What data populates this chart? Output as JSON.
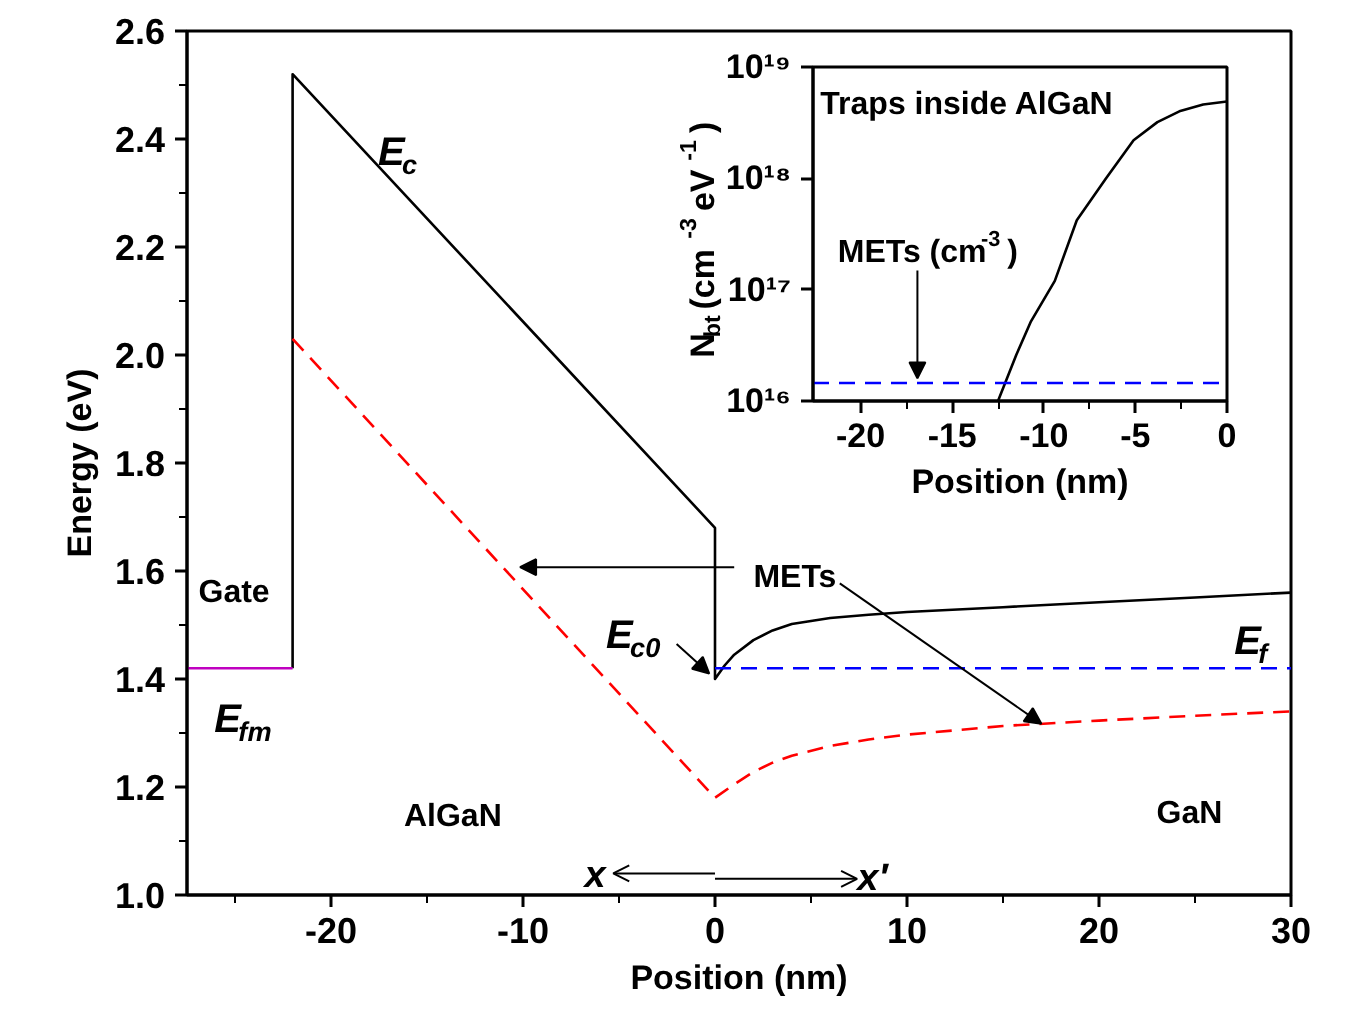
{
  "chart_data": [
    {
      "type": "line",
      "xlabel": "Position (nm)",
      "ylabel": "Energy (eV)",
      "xlim": [
        -27.5,
        30
      ],
      "ylim": [
        1.0,
        2.6
      ],
      "xticks": [
        {
          "value": -25,
          "label": null
        },
        -20,
        {
          "value": -15,
          "label": null
        },
        -10,
        {
          "value": -5,
          "label": null
        },
        0,
        {
          "value": 5,
          "label": null
        },
        10,
        {
          "value": 15,
          "label": null
        },
        20,
        {
          "value": 25,
          "label": null
        },
        30
      ],
      "yticks": [
        {
          "value": 1.0,
          "label": "1.0"
        },
        {
          "value": 1.1,
          "label": null
        },
        {
          "value": 1.2,
          "label": "1.2"
        },
        {
          "value": 1.3,
          "label": null
        },
        {
          "value": 1.4,
          "label": "1.4"
        },
        {
          "value": 1.5,
          "label": null
        },
        {
          "value": 1.6,
          "label": "1.6"
        },
        {
          "value": 1.7,
          "label": null
        },
        {
          "value": 1.8,
          "label": "1.8"
        },
        {
          "value": 1.9,
          "label": null
        },
        {
          "value": 2.0,
          "label": "2.0"
        },
        {
          "value": 2.1,
          "label": null
        },
        {
          "value": 2.2,
          "label": "2.2"
        },
        {
          "value": 2.3,
          "label": null
        },
        {
          "value": 2.4,
          "label": "2.4"
        },
        {
          "value": 2.5,
          "label": null
        },
        {
          "value": 2.6,
          "label": "2.6"
        }
      ],
      "grid": false,
      "series": [
        {
          "color": "#000000",
          "line_style": "solid",
          "x": [
            -22,
            -22,
            0,
            0,
            0.5,
            1,
            2,
            3,
            4,
            6,
            8,
            10,
            15,
            20,
            25,
            30
          ],
          "values": [
            1.42,
            2.52,
            1.68,
            1.4,
            1.425,
            1.445,
            1.472,
            1.49,
            1.502,
            1.513,
            1.519,
            1.524,
            1.533,
            1.542,
            1.551,
            1.56
          ]
        },
        {
          "color": "#c000c0",
          "line_style": "solid",
          "x": [
            -27.5,
            -22
          ],
          "values": [
            1.42,
            1.42
          ]
        },
        {
          "color": "#0000ff",
          "line_style": "dashed",
          "x": [
            0,
            30
          ],
          "values": [
            1.42,
            1.42
          ]
        },
        {
          "color": "#ff0000",
          "line_style": "dashed",
          "x": [
            -22,
            0,
            1,
            2,
            3,
            4,
            6,
            8,
            10,
            15,
            20,
            25,
            30
          ],
          "values": [
            2.03,
            1.18,
            1.205,
            1.228,
            1.245,
            1.258,
            1.276,
            1.288,
            1.297,
            1.313,
            1.323,
            1.332,
            1.34
          ]
        }
      ],
      "annotations": [
        "E$_{c}$",
        "Gate",
        "E$_{fm}$",
        "AlGaN",
        "GaN",
        {
          "text": "E$_{c0}$",
          "x": 0,
          "y": 1.4
        },
        "E$_{f}$",
        {
          "text": "METs",
          "x": 17,
          "y": 1.317
        },
        "x",
        "x′"
      ]
    },
    {
      "type": "line",
      "xlabel": "Position (nm)",
      "ylabel": "N$_{bt}$ (cm$^{-3}$ eV$^{-1}$)",
      "log": "y",
      "xlim": [
        -22.6,
        0
      ],
      "ylim": [
        1e+16,
        1e+19
      ],
      "xticks": [
        -20,
        {
          "value": -17.5,
          "label": null
        },
        -15,
        {
          "value": -12.5,
          "label": null
        },
        -10,
        {
          "value": -7.5,
          "label": null
        },
        -5,
        {
          "value": -2.5,
          "label": null
        },
        0
      ],
      "yticks": [
        {
          "value": 1e+16,
          "label": "10¹⁶"
        },
        {
          "value": 1e+17,
          "label": "10¹⁷"
        },
        {
          "value": 1e+18,
          "label": "10¹⁸"
        },
        {
          "value": 1e+19,
          "label": "10¹⁹"
        }
      ],
      "grid": false,
      "series": [
        {
          "color": "#000000",
          "line_style": "solid",
          "x": [
            -12.5,
            -11.5,
            -10.7,
            -9.4,
            -8.2,
            -6.6,
            -5.1,
            -3.8,
            -2.6,
            -1.3,
            0
          ],
          "values": [
            1e+16,
            2.6e+16,
            5.2e+16,
            1.2e+17,
            4.2e+17,
            1e+18,
            2.2e+18,
            3.2e+18,
            4e+18,
            4.6e+18,
            4.9e+18
          ]
        },
        {
          "color": "#0000ff",
          "line_style": "dashed",
          "x": [
            -22.6,
            0
          ],
          "values": [
            1.45e+16,
            1.45e+16
          ]
        }
      ],
      "annotations": [
        "Traps inside AlGaN",
        {
          "text": "METs (cm$^{-3}$)",
          "x": -16.9,
          "y": 1.45e+16
        }
      ]
    }
  ]
}
